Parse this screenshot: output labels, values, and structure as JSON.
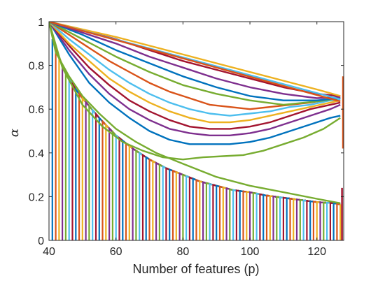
{
  "chart_data": {
    "type": "line",
    "title": "",
    "xlabel": "Number of features (p)",
    "ylabel": "α",
    "xlim": [
      40,
      128
    ],
    "ylim": [
      0,
      1
    ],
    "xticks": [
      40,
      60,
      80,
      100,
      120
    ],
    "yticks": [
      0,
      0.2,
      0.4,
      0.6,
      0.8,
      1
    ],
    "xtick_labels": [
      "40",
      "60",
      "80",
      "100",
      "120"
    ],
    "ytick_labels": [
      "0",
      "0.2",
      "0.4",
      "0.6",
      "0.8",
      "1"
    ],
    "grid": false,
    "legend": "none",
    "colors": [
      "#0072BD",
      "#D95319",
      "#EDB120",
      "#7E2F8E",
      "#77AC30",
      "#4DBEEE",
      "#A2142F"
    ],
    "series": [
      {
        "x": [
          40,
          44,
          50,
          56,
          62,
          68,
          74,
          80,
          86,
          92,
          98,
          104,
          110,
          116,
          122,
          127
        ],
        "values": [
          1.0,
          0.79,
          0.62,
          0.52,
          0.45,
          0.41,
          0.38,
          0.37,
          0.38,
          0.385,
          0.39,
          0.41,
          0.44,
          0.47,
          0.51,
          0.56
        ]
      },
      {
        "x": [
          40,
          46,
          52,
          58,
          64,
          70,
          76,
          82,
          88,
          94,
          100,
          106,
          112,
          118,
          124,
          127
        ],
        "values": [
          1.0,
          0.85,
          0.72,
          0.63,
          0.56,
          0.5,
          0.46,
          0.44,
          0.44,
          0.44,
          0.45,
          0.47,
          0.5,
          0.53,
          0.56,
          0.57
        ]
      },
      {
        "x": [
          40,
          46,
          52,
          58,
          64,
          70,
          76,
          82,
          88,
          94,
          100,
          106,
          112,
          118,
          124,
          127
        ],
        "values": [
          1.0,
          0.87,
          0.76,
          0.67,
          0.6,
          0.55,
          0.51,
          0.49,
          0.48,
          0.48,
          0.49,
          0.51,
          0.54,
          0.57,
          0.6,
          0.62
        ]
      },
      {
        "x": [
          40,
          46,
          52,
          58,
          64,
          70,
          76,
          82,
          88,
          94,
          100,
          106,
          112,
          118,
          124,
          127
        ],
        "values": [
          1.0,
          0.89,
          0.79,
          0.71,
          0.64,
          0.59,
          0.55,
          0.52,
          0.51,
          0.51,
          0.52,
          0.54,
          0.57,
          0.6,
          0.62,
          0.63
        ]
      },
      {
        "x": [
          40,
          46,
          52,
          58,
          64,
          70,
          76,
          82,
          88,
          94,
          100,
          106,
          112,
          118,
          124,
          127
        ],
        "values": [
          1.0,
          0.9,
          0.82,
          0.74,
          0.68,
          0.63,
          0.59,
          0.56,
          0.54,
          0.54,
          0.55,
          0.57,
          0.59,
          0.61,
          0.63,
          0.64
        ]
      },
      {
        "x": [
          40,
          46,
          52,
          58,
          64,
          70,
          76,
          82,
          88,
          94,
          100,
          106,
          112,
          118,
          124,
          127
        ],
        "values": [
          1.0,
          0.92,
          0.85,
          0.78,
          0.72,
          0.67,
          0.63,
          0.6,
          0.58,
          0.57,
          0.58,
          0.59,
          0.61,
          0.62,
          0.64,
          0.645
        ]
      },
      {
        "x": [
          40,
          46,
          52,
          58,
          64,
          70,
          76,
          82,
          88,
          94,
          100,
          106,
          112,
          118,
          124,
          127
        ],
        "values": [
          1.0,
          0.94,
          0.88,
          0.82,
          0.77,
          0.72,
          0.68,
          0.65,
          0.62,
          0.61,
          0.6,
          0.61,
          0.62,
          0.63,
          0.645,
          0.65
        ]
      },
      {
        "x": [
          40,
          50,
          60,
          70,
          80,
          90,
          100,
          110,
          120,
          127
        ],
        "values": [
          1.0,
          0.92,
          0.84,
          0.77,
          0.71,
          0.67,
          0.64,
          0.62,
          0.635,
          0.65
        ]
      },
      {
        "x": [
          40,
          50,
          60,
          70,
          80,
          90,
          100,
          110,
          120,
          127
        ],
        "values": [
          1.0,
          0.94,
          0.87,
          0.81,
          0.75,
          0.7,
          0.66,
          0.64,
          0.64,
          0.65
        ]
      },
      {
        "x": [
          40,
          50,
          60,
          70,
          80,
          90,
          100,
          110,
          120,
          127
        ],
        "values": [
          1.0,
          0.95,
          0.9,
          0.84,
          0.79,
          0.74,
          0.7,
          0.67,
          0.65,
          0.655
        ]
      },
      {
        "x": [
          40,
          50,
          60,
          70,
          80,
          90,
          100,
          110,
          120,
          127
        ],
        "values": [
          1.0,
          0.96,
          0.92,
          0.87,
          0.82,
          0.78,
          0.74,
          0.7,
          0.67,
          0.66
        ]
      },
      {
        "x": [
          40,
          50,
          60,
          70,
          80,
          90,
          100,
          110,
          120,
          127
        ],
        "values": [
          1.0,
          0.965,
          0.93,
          0.89,
          0.85,
          0.81,
          0.77,
          0.73,
          0.69,
          0.66
        ]
      },
      {
        "x": [
          40,
          127
        ],
        "values": [
          1.0,
          0.645
        ]
      },
      {
        "x": [
          40,
          127
        ],
        "values": [
          1.0,
          0.635
        ]
      },
      {
        "x": [
          40,
          42,
          46,
          50,
          55,
          60,
          66,
          72,
          80,
          90,
          100,
          110,
          120,
          127
        ],
        "values": [
          1.0,
          0.86,
          0.75,
          0.66,
          0.58,
          0.51,
          0.45,
          0.4,
          0.35,
          0.29,
          0.25,
          0.22,
          0.19,
          0.17
        ]
      }
    ],
    "dense_band": {
      "note": "many overlapping series following a lower envelope, each starting at 0, rising steeply to the envelope and running along it",
      "start_x": [
        41,
        42,
        43,
        44,
        45,
        46,
        47,
        48,
        49,
        50,
        51,
        52,
        53,
        54,
        55,
        56,
        57,
        58,
        59,
        60,
        61,
        62,
        63,
        64,
        65,
        66,
        67,
        68,
        69,
        70,
        71,
        72,
        73,
        74,
        75,
        76,
        77,
        78,
        79,
        80,
        81,
        82,
        83,
        84,
        85,
        86,
        87,
        88,
        89,
        90,
        91,
        92,
        93,
        94,
        95,
        96,
        97,
        98,
        99,
        100,
        101,
        102,
        103,
        104,
        105,
        106,
        107,
        108,
        109,
        110,
        111,
        112,
        113,
        114,
        115,
        116,
        117,
        118,
        119,
        120,
        121,
        122,
        123,
        124,
        125,
        126,
        127
      ],
      "envelope_x": [
        40,
        41,
        42,
        44,
        46,
        48,
        50,
        55,
        60,
        65,
        70,
        75,
        80,
        85,
        90,
        95,
        100,
        105,
        110,
        115,
        120,
        125,
        127
      ],
      "envelope_y": [
        1.0,
        0.92,
        0.88,
        0.8,
        0.74,
        0.69,
        0.65,
        0.56,
        0.48,
        0.42,
        0.37,
        0.33,
        0.3,
        0.27,
        0.25,
        0.23,
        0.22,
        0.205,
        0.195,
        0.185,
        0.175,
        0.17,
        0.165
      ]
    }
  }
}
